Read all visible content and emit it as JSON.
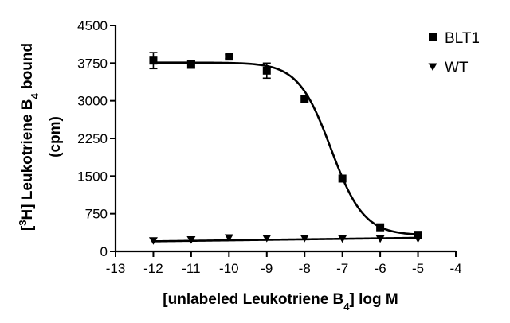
{
  "chart_data": {
    "type": "scatter",
    "xlabel": {
      "main": "[unlabeled Leukotriene B",
      "sub": "4",
      "tail": "] log M"
    },
    "ylabel": {
      "line1_pre": "[",
      "line1_sup": "3",
      "line1_mid": "H] Leukotriene B",
      "line1_sub": "4",
      "line1_post": " bound",
      "line2": "(cpm)"
    },
    "xlim": [
      -13,
      -4
    ],
    "ylim": [
      0,
      4500
    ],
    "x_ticks": [
      -13,
      -12,
      -11,
      -10,
      -9,
      -8,
      -7,
      -6,
      -5,
      -4
    ],
    "y_ticks": [
      0,
      750,
      1500,
      2250,
      3000,
      3750,
      4500
    ],
    "legend_position": "top-right",
    "series": [
      {
        "name": "BLT1",
        "marker": "square",
        "color": "#000000",
        "x": [
          -12,
          -11,
          -10,
          -9,
          -8,
          -7,
          -6,
          -5
        ],
        "y": [
          3800,
          3720,
          3880,
          3600,
          3030,
          1450,
          480,
          330
        ],
        "err": [
          160,
          70,
          40,
          150,
          0,
          0,
          0,
          0
        ],
        "fit": {
          "model": "sigmoid",
          "top": 3760,
          "bottom": 320,
          "logEC50": -7.3,
          "hill": 1
        }
      },
      {
        "name": "WT",
        "marker": "triangle-down",
        "color": "#000000",
        "x": [
          -12,
          -11,
          -10,
          -9,
          -8,
          -7,
          -6,
          -5
        ],
        "y": [
          210,
          230,
          270,
          260,
          260,
          250,
          250,
          250
        ],
        "fit": {
          "model": "line",
          "y0": 200,
          "y1": 270
        }
      }
    ]
  }
}
